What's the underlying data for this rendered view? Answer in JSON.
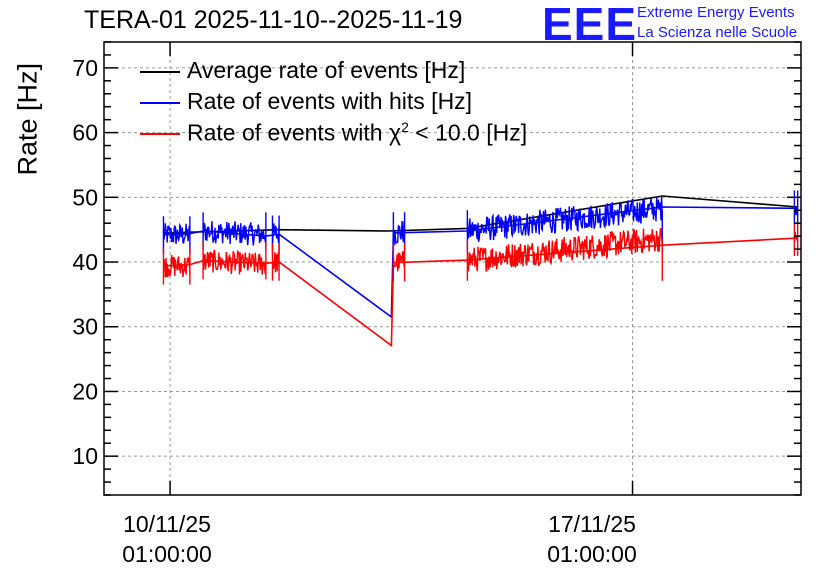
{
  "header": {
    "title": "TERA-01 2025-11-10--2025-11-19",
    "logo_text": "EEE",
    "logo_line1": "Extreme Energy Events",
    "logo_line2": "La Scienza nelle Scuole"
  },
  "colors": {
    "average": "#000000",
    "hits": "#0000ff",
    "chi2": "#ff0000",
    "grid": "#9a9a9a",
    "logo": "#1a1aff"
  },
  "chart_data": {
    "type": "line",
    "title": "TERA-01 2025-11-10--2025-11-19",
    "ylabel": "Rate [Hz]",
    "xlabel": "",
    "ylim": [
      4,
      74
    ],
    "xlim_days": [
      -1.0,
      9.55
    ],
    "yticks": [
      10,
      20,
      30,
      40,
      50,
      60,
      70
    ],
    "xticks": [
      {
        "day": 0,
        "line1": "10/11/25",
        "line2": "01:00:00"
      },
      {
        "day": 7,
        "line1": "17/11/25",
        "line2": "01:00:00"
      }
    ],
    "grid": true,
    "legend_position": "top-left",
    "x_unit": "days since 10/11/25 01:00:00",
    "series": [
      {
        "name": "Average rate of events [Hz]",
        "legend_main": "Average rate of events [Hz]",
        "color": "#000000",
        "points": [
          [
            -0.1,
            44.5
          ],
          [
            1.65,
            45.0
          ],
          [
            3.3,
            44.8
          ],
          [
            4.5,
            45.2
          ],
          [
            7.45,
            50.2
          ],
          [
            9.5,
            48.5
          ]
        ],
        "noisy_segments": []
      },
      {
        "name": "Rate of events with hits [Hz]",
        "legend_main": "Rate of events with hits [Hz]",
        "color": "#0000ff",
        "points": [
          [
            -0.1,
            44.2
          ],
          [
            0.3,
            44.4
          ],
          [
            0.5,
            44.8
          ],
          [
            1.45,
            44.0
          ],
          [
            1.65,
            44.3
          ],
          [
            3.35,
            31.5
          ],
          [
            3.38,
            44.5
          ],
          [
            4.5,
            44.8
          ],
          [
            7.45,
            48.5
          ],
          [
            9.5,
            48.3
          ]
        ],
        "noisy_segments": [
          {
            "x0": -0.1,
            "x1": 0.3,
            "y0": 44.2,
            "y1": 44.2,
            "amp": 1.8
          },
          {
            "x0": 0.5,
            "x1": 1.45,
            "y0": 44.8,
            "y1": 44.2,
            "amp": 1.8
          },
          {
            "x0": 1.55,
            "x1": 1.65,
            "y0": 44.3,
            "y1": 44.3,
            "amp": 1.8
          },
          {
            "x0": 3.38,
            "x1": 3.55,
            "y0": 44.5,
            "y1": 44.7,
            "amp": 2.0
          },
          {
            "x0": 4.5,
            "x1": 7.45,
            "y0": 44.8,
            "y1": 48.3,
            "amp": 2.0
          },
          {
            "x0": 9.45,
            "x1": 9.5,
            "y0": 48.5,
            "y1": 48.5,
            "amp": 1.6
          }
        ]
      },
      {
        "name": "Rate of events with chi2 < 10.0 [Hz]",
        "legend_main": "Rate of events with χ",
        "legend_sup": "2",
        "legend_tail": " < 10.0 [Hz]",
        "color": "#ff0000",
        "points": [
          [
            -0.1,
            39.4
          ],
          [
            0.3,
            39.6
          ],
          [
            0.5,
            40.2
          ],
          [
            1.45,
            39.8
          ],
          [
            1.65,
            40.0
          ],
          [
            3.35,
            27.1
          ],
          [
            3.38,
            39.9
          ],
          [
            4.5,
            40.3
          ],
          [
            7.45,
            42.6
          ],
          [
            9.5,
            43.7
          ]
        ],
        "noisy_segments": [
          {
            "x0": -0.1,
            "x1": 0.3,
            "y0": 39.4,
            "y1": 39.4,
            "amp": 1.8
          },
          {
            "x0": 0.5,
            "x1": 1.45,
            "y0": 40.2,
            "y1": 39.6,
            "amp": 1.8
          },
          {
            "x0": 1.55,
            "x1": 1.65,
            "y0": 40.0,
            "y1": 40.0,
            "amp": 1.8
          },
          {
            "x0": 3.38,
            "x1": 3.55,
            "y0": 39.9,
            "y1": 40.0,
            "amp": 1.8
          },
          {
            "x0": 4.5,
            "x1": 7.45,
            "y0": 40.3,
            "y1": 43.6,
            "amp": 2.0
          },
          {
            "x0": 9.45,
            "x1": 9.5,
            "y0": 43.5,
            "y1": 43.5,
            "amp": 1.6
          }
        ]
      }
    ]
  }
}
